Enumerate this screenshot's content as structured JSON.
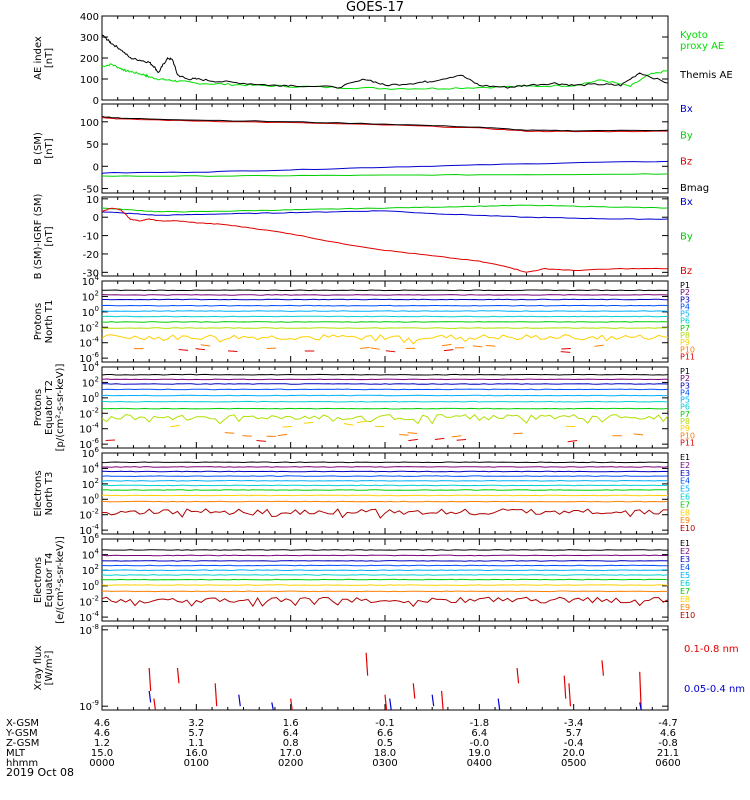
{
  "title": "GOES-17",
  "chart_data": [
    {
      "type": "line",
      "ylabel": [
        "AE index",
        "[nT]"
      ],
      "ylim": [
        0,
        400
      ],
      "yticks": [
        "400",
        "300",
        "200",
        "100",
        "0"
      ],
      "tickvals": [
        400,
        300,
        200,
        100,
        0
      ],
      "scale": "linear",
      "series": [
        {
          "name": "Kyoto\nproxy AE",
          "color": "#00e000",
          "x": [
            0,
            0.1,
            0.2,
            0.25,
            0.35,
            0.45,
            0.5,
            0.6,
            0.7,
            0.8,
            1.0,
            1.3,
            1.6,
            2.0,
            2.5,
            3.0,
            3.5,
            4.0,
            4.5,
            5.0,
            5.3,
            5.6,
            5.8,
            6.0
          ],
          "y": [
            160,
            170,
            150,
            140,
            130,
            120,
            110,
            100,
            95,
            90,
            80,
            75,
            70,
            65,
            60,
            55,
            55,
            60,
            65,
            70,
            95,
            65,
            120,
            140
          ]
        },
        {
          "name": "Themis AE",
          "color": "#000000",
          "x": [
            0,
            0.05,
            0.1,
            0.2,
            0.3,
            0.4,
            0.5,
            0.55,
            0.6,
            0.65,
            0.7,
            0.75,
            0.8,
            0.9,
            1.0,
            1.2,
            1.5,
            1.8,
            2.0,
            2.5,
            2.8,
            3.0,
            3.3,
            3.5,
            3.8,
            4.0,
            4.3,
            4.5,
            4.8,
            5.0,
            5.3,
            5.5,
            5.7,
            6.0
          ],
          "y": [
            310,
            290,
            270,
            240,
            200,
            190,
            180,
            160,
            130,
            170,
            200,
            190,
            120,
            100,
            100,
            90,
            80,
            70,
            70,
            60,
            100,
            70,
            80,
            90,
            120,
            70,
            60,
            70,
            80,
            70,
            75,
            70,
            130,
            80
          ]
        }
      ]
    },
    {
      "type": "line",
      "ylabel": [
        "B (SM)",
        "[nT]"
      ],
      "ylim": [
        -60,
        140
      ],
      "yticks": [
        "100",
        "50",
        "0",
        "-50"
      ],
      "tickvals": [
        100,
        50,
        0,
        -50
      ],
      "scale": "linear",
      "series": [
        {
          "name": "Bx",
          "color": "#0000d0",
          "x": [
            0,
            1,
            2,
            3,
            4,
            5,
            6
          ],
          "y": [
            -15,
            -13,
            -8,
            -2,
            3,
            8,
            11
          ]
        },
        {
          "name": "By",
          "color": "#00d000",
          "x": [
            0,
            1,
            2,
            3,
            4,
            5,
            6
          ],
          "y": [
            -22,
            -22,
            -21,
            -20,
            -19,
            -18,
            -17
          ]
        },
        {
          "name": "Bz",
          "color": "#e00000",
          "x": [
            0,
            0.2,
            1,
            2,
            3,
            4,
            4.5,
            5,
            6
          ],
          "y": [
            110,
            106,
            102,
            98,
            93,
            86,
            79,
            78,
            79
          ]
        },
        {
          "name": "Bmag",
          "color": "#000000",
          "x": [
            0,
            0.2,
            1,
            2,
            3,
            4,
            4.5,
            5,
            6
          ],
          "y": [
            112,
            108,
            104,
            100,
            95,
            88,
            81,
            80,
            81
          ]
        }
      ]
    },
    {
      "type": "line",
      "ylabel": [
        "B (SM)-IGRF (SM)",
        "[nT]"
      ],
      "ylim": [
        -32,
        11
      ],
      "yticks": [
        "10",
        "0",
        "-10",
        "-20",
        "-30"
      ],
      "tickvals": [
        10,
        0,
        -10,
        -20,
        -30
      ],
      "scale": "linear",
      "series": [
        {
          "name": "Bx",
          "color": "#0000d0",
          "x": [
            0,
            0.3,
            0.6,
            1,
            1.5,
            2,
            2.5,
            3,
            3.5,
            4,
            4.5,
            5,
            5.5,
            6
          ],
          "y": [
            3,
            2,
            1,
            1.5,
            2,
            2.5,
            3,
            3.5,
            2,
            1,
            0,
            -0.5,
            -1,
            -1
          ]
        },
        {
          "name": "By",
          "color": "#00d000",
          "x": [
            0,
            0.3,
            0.6,
            1,
            1.5,
            2,
            2.5,
            3,
            3.5,
            4,
            4.5,
            5,
            5.5,
            6
          ],
          "y": [
            5,
            4,
            3,
            3,
            3.5,
            4,
            4.5,
            5,
            5.5,
            6,
            6.5,
            6,
            5.5,
            5
          ]
        },
        {
          "name": "Bz",
          "color": "#e00000",
          "x": [
            0,
            0.1,
            0.2,
            0.3,
            0.4,
            0.5,
            0.6,
            0.8,
            1,
            1.3,
            1.6,
            2,
            2.5,
            3,
            3.5,
            4,
            4.3,
            4.5,
            4.7,
            5,
            5.5,
            6
          ],
          "y": [
            3,
            5,
            4,
            -1,
            -2,
            -1,
            -2,
            -2,
            -3,
            -4,
            -6,
            -9,
            -14,
            -18,
            -21,
            -24,
            -27,
            -30,
            -28,
            -29,
            -28,
            -28
          ]
        }
      ]
    },
    {
      "type": "line",
      "ylabel": [
        "Protons",
        "North T1"
      ],
      "ylim": [
        -6.5,
        4
      ],
      "yticks": [
        "10^4",
        "10^2",
        "10^0",
        "10^-2",
        "10^-4",
        "10^-6"
      ],
      "tickvals": [
        4,
        2,
        0,
        -2,
        -4,
        -6
      ],
      "scale": "log",
      "series": [
        {
          "name": "P1",
          "color": "#000000",
          "level": 2.8
        },
        {
          "name": "P2",
          "color": "#7a007a",
          "level": 2.2
        },
        {
          "name": "P3",
          "color": "#0000c0",
          "level": 1.6
        },
        {
          "name": "P4",
          "color": "#0050ff",
          "level": 0.8
        },
        {
          "name": "P5",
          "color": "#00b0ff",
          "level": 0.1
        },
        {
          "name": "P6",
          "color": "#00d0d0",
          "level": -0.6
        },
        {
          "name": "P7",
          "color": "#00d000",
          "level": -1.3
        },
        {
          "name": "P8",
          "color": "#b0e000",
          "level": -2.1
        },
        {
          "name": "P9",
          "color": "#ffd000",
          "level": -3.3,
          "noisy": true
        },
        {
          "name": "P10",
          "color": "#ff7f00",
          "level": -4.5,
          "sparse": true
        },
        {
          "name": "P11",
          "color": "#e00000",
          "level": -5.0,
          "sparse": true
        }
      ]
    },
    {
      "type": "line",
      "ylabel": [
        "Protons",
        "Equator T2",
        "[p/(cm²-s-sr-keV)]"
      ],
      "ylim": [
        -6.5,
        4
      ],
      "yticks": [
        "10^4",
        "10^2",
        "10^0",
        "10^-2",
        "10^-4",
        "10^-6"
      ],
      "tickvals": [
        4,
        2,
        0,
        -2,
        -4,
        -6
      ],
      "scale": "log",
      "series": [
        {
          "name": "P1",
          "color": "#000000",
          "level": 3.0
        },
        {
          "name": "P2",
          "color": "#7a007a",
          "level": 2.4
        },
        {
          "name": "P3",
          "color": "#0000c0",
          "level": 1.8
        },
        {
          "name": "P4",
          "color": "#0050ff",
          "level": 1.1
        },
        {
          "name": "P5",
          "color": "#00b0ff",
          "level": 0.3
        },
        {
          "name": "P6",
          "color": "#00d0d0",
          "level": -0.5
        },
        {
          "name": "P7",
          "color": "#00d000",
          "level": -1.4
        },
        {
          "name": "P8",
          "color": "#b0e000",
          "level": -2.5,
          "noisy": true
        },
        {
          "name": "P9",
          "color": "#ffd000",
          "level": -3.5,
          "sparse": true
        },
        {
          "name": "P10",
          "color": "#ff7f00",
          "level": -4.8,
          "sparse": true
        },
        {
          "name": "P11",
          "color": "#e00000",
          "level": -5.5,
          "sparse": true
        }
      ]
    },
    {
      "type": "line",
      "ylabel": [
        "Electrons",
        "North T3"
      ],
      "ylim": [
        -4.5,
        6
      ],
      "yticks": [
        "10^6",
        "10^4",
        "10^2",
        "10^0",
        "10^-2",
        "10^-4"
      ],
      "tickvals": [
        6,
        4,
        2,
        0,
        -2,
        -4
      ],
      "scale": "log",
      "series": [
        {
          "name": "E1",
          "color": "#000000",
          "level": 4.8
        },
        {
          "name": "E2",
          "color": "#7a007a",
          "level": 4.2
        },
        {
          "name": "E3",
          "color": "#0000c0",
          "level": 3.6
        },
        {
          "name": "E4",
          "color": "#0050ff",
          "level": 3.0
        },
        {
          "name": "E5",
          "color": "#00b0ff",
          "level": 2.4
        },
        {
          "name": "E6",
          "color": "#00d0d0",
          "level": 1.8
        },
        {
          "name": "E7",
          "color": "#00d000",
          "level": 1.2
        },
        {
          "name": "E8",
          "color": "#ffd000",
          "level": 0.5
        },
        {
          "name": "E9",
          "color": "#ff7f00",
          "level": -0.3
        },
        {
          "name": "E10",
          "color": "#b00000",
          "level": -1.6,
          "noisy": true
        }
      ]
    },
    {
      "type": "line",
      "ylabel": [
        "Electrons",
        "Equator T4",
        "[e/(cm²-s-sr-keV)]"
      ],
      "ylim": [
        -4.5,
        6
      ],
      "yticks": [
        "10^6",
        "10^4",
        "10^2",
        "10^0",
        "10^-2",
        "10^-4"
      ],
      "tickvals": [
        6,
        4,
        2,
        0,
        -2,
        -4
      ],
      "scale": "log",
      "series": [
        {
          "name": "E1",
          "color": "#000000",
          "level": 4.6
        },
        {
          "name": "E2",
          "color": "#7a007a",
          "level": 3.9
        },
        {
          "name": "E3",
          "color": "#0000c0",
          "level": 3.2
        },
        {
          "name": "E4",
          "color": "#0050ff",
          "level": 2.6
        },
        {
          "name": "E5",
          "color": "#00b0ff",
          "level": 2.0
        },
        {
          "name": "E6",
          "color": "#00d0d0",
          "level": 1.4
        },
        {
          "name": "E7",
          "color": "#00d000",
          "level": 0.8
        },
        {
          "name": "E8",
          "color": "#ffd000",
          "level": 0.1
        },
        {
          "name": "E9",
          "color": "#ff7f00",
          "level": -0.7
        },
        {
          "name": "E10",
          "color": "#b00000",
          "level": -1.8,
          "noisy": true
        }
      ]
    },
    {
      "type": "line",
      "ylabel": [
        "Xray flux",
        "[W/m²]"
      ],
      "ylim": [
        -9.05,
        -7.95
      ],
      "yticks": [
        "10^-8",
        "10^-9"
      ],
      "tickvals": [
        -8,
        -9
      ],
      "scale": "log",
      "series": [
        {
          "name": "0.1-0.8 nm",
          "color": "#e00000",
          "spikes": [
            [
              0.5,
              -8.5,
              -8.8
            ],
            [
              0.55,
              -8.9,
              -9.05
            ],
            [
              0.8,
              -8.5,
              -8.7
            ],
            [
              1.2,
              -8.7,
              -9.0
            ],
            [
              2.0,
              -8.9,
              -9.05
            ],
            [
              2.8,
              -8.3,
              -8.6
            ],
            [
              3.0,
              -8.85,
              -9.05
            ],
            [
              3.3,
              -8.7,
              -8.9
            ],
            [
              3.6,
              -8.8,
              -9.05
            ],
            [
              4.4,
              -8.5,
              -8.7
            ],
            [
              4.9,
              -8.6,
              -8.9
            ],
            [
              4.95,
              -8.7,
              -9.0
            ],
            [
              5.3,
              -8.4,
              -8.6
            ],
            [
              5.7,
              -8.55,
              -9.05
            ]
          ]
        },
        {
          "name": "0.05-0.4 nm",
          "color": "#0000d0",
          "spikes": [
            [
              0.5,
              -8.8,
              -8.95
            ],
            [
              1.45,
              -8.85,
              -9.0
            ],
            [
              1.8,
              -8.95,
              -9.05
            ],
            [
              3.05,
              -8.9,
              -9.05
            ],
            [
              3.5,
              -8.85,
              -9.0
            ],
            [
              4.2,
              -8.9,
              -9.05
            ],
            [
              5.7,
              -8.95,
              -9.05
            ]
          ]
        }
      ]
    }
  ],
  "x_axis": {
    "ticks": [
      0,
      1,
      2,
      3,
      4,
      5,
      6
    ],
    "rows": [
      {
        "label": "X-GSM",
        "values": [
          "4.6",
          "3.2",
          "1.6",
          "-0.1",
          "-1.8",
          "-3.4",
          "-4.7"
        ]
      },
      {
        "label": "Y-GSM",
        "values": [
          "4.6",
          "5.7",
          "6.4",
          "6.6",
          "6.4",
          "5.7",
          "4.6"
        ]
      },
      {
        "label": "Z-GSM",
        "values": [
          "1.2",
          "1.1",
          "0.8",
          "0.5",
          "-0.0",
          "-0.4",
          "-0.8"
        ]
      },
      {
        "label": "MLT",
        "values": [
          "15.0",
          "16.0",
          "17.0",
          "18.0",
          "19.0",
          "20.0",
          "21.1"
        ]
      },
      {
        "label": "hhmm",
        "values": [
          "0000",
          "0100",
          "0200",
          "0300",
          "0400",
          "0500",
          "0600"
        ]
      }
    ],
    "date": "2019 Oct 08"
  }
}
